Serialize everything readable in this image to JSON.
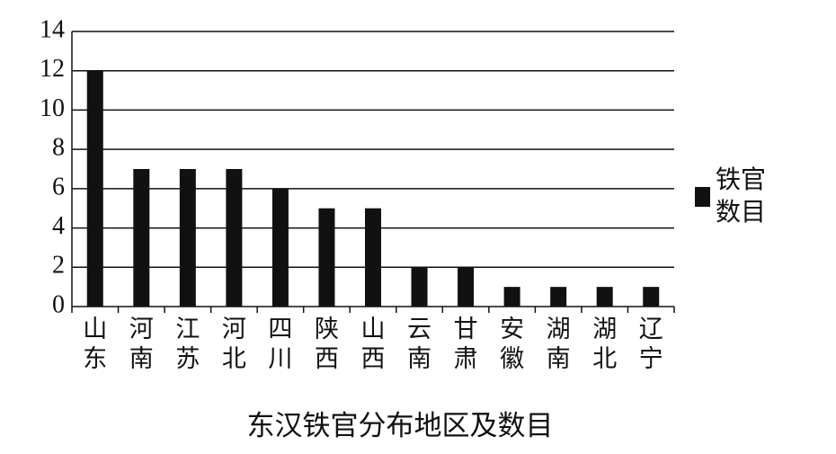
{
  "chart_data": {
    "type": "bar",
    "title": "东汉铁官分布地区及数目",
    "categories": [
      "山东",
      "河南",
      "江苏",
      "河北",
      "四川",
      "陕西",
      "山西",
      "云南",
      "甘肃",
      "安徽",
      "湖南",
      "湖北",
      "辽宁"
    ],
    "series": [
      {
        "name": "铁官数目",
        "color": "#111111",
        "values": [
          12,
          7,
          7,
          7,
          6,
          5,
          5,
          2,
          2,
          1,
          1,
          1,
          1
        ]
      }
    ],
    "ylim": [
      0,
      14
    ],
    "yticks": [
      0,
      2,
      4,
      6,
      8,
      10,
      12,
      14
    ],
    "grid": true,
    "legend": "right"
  }
}
